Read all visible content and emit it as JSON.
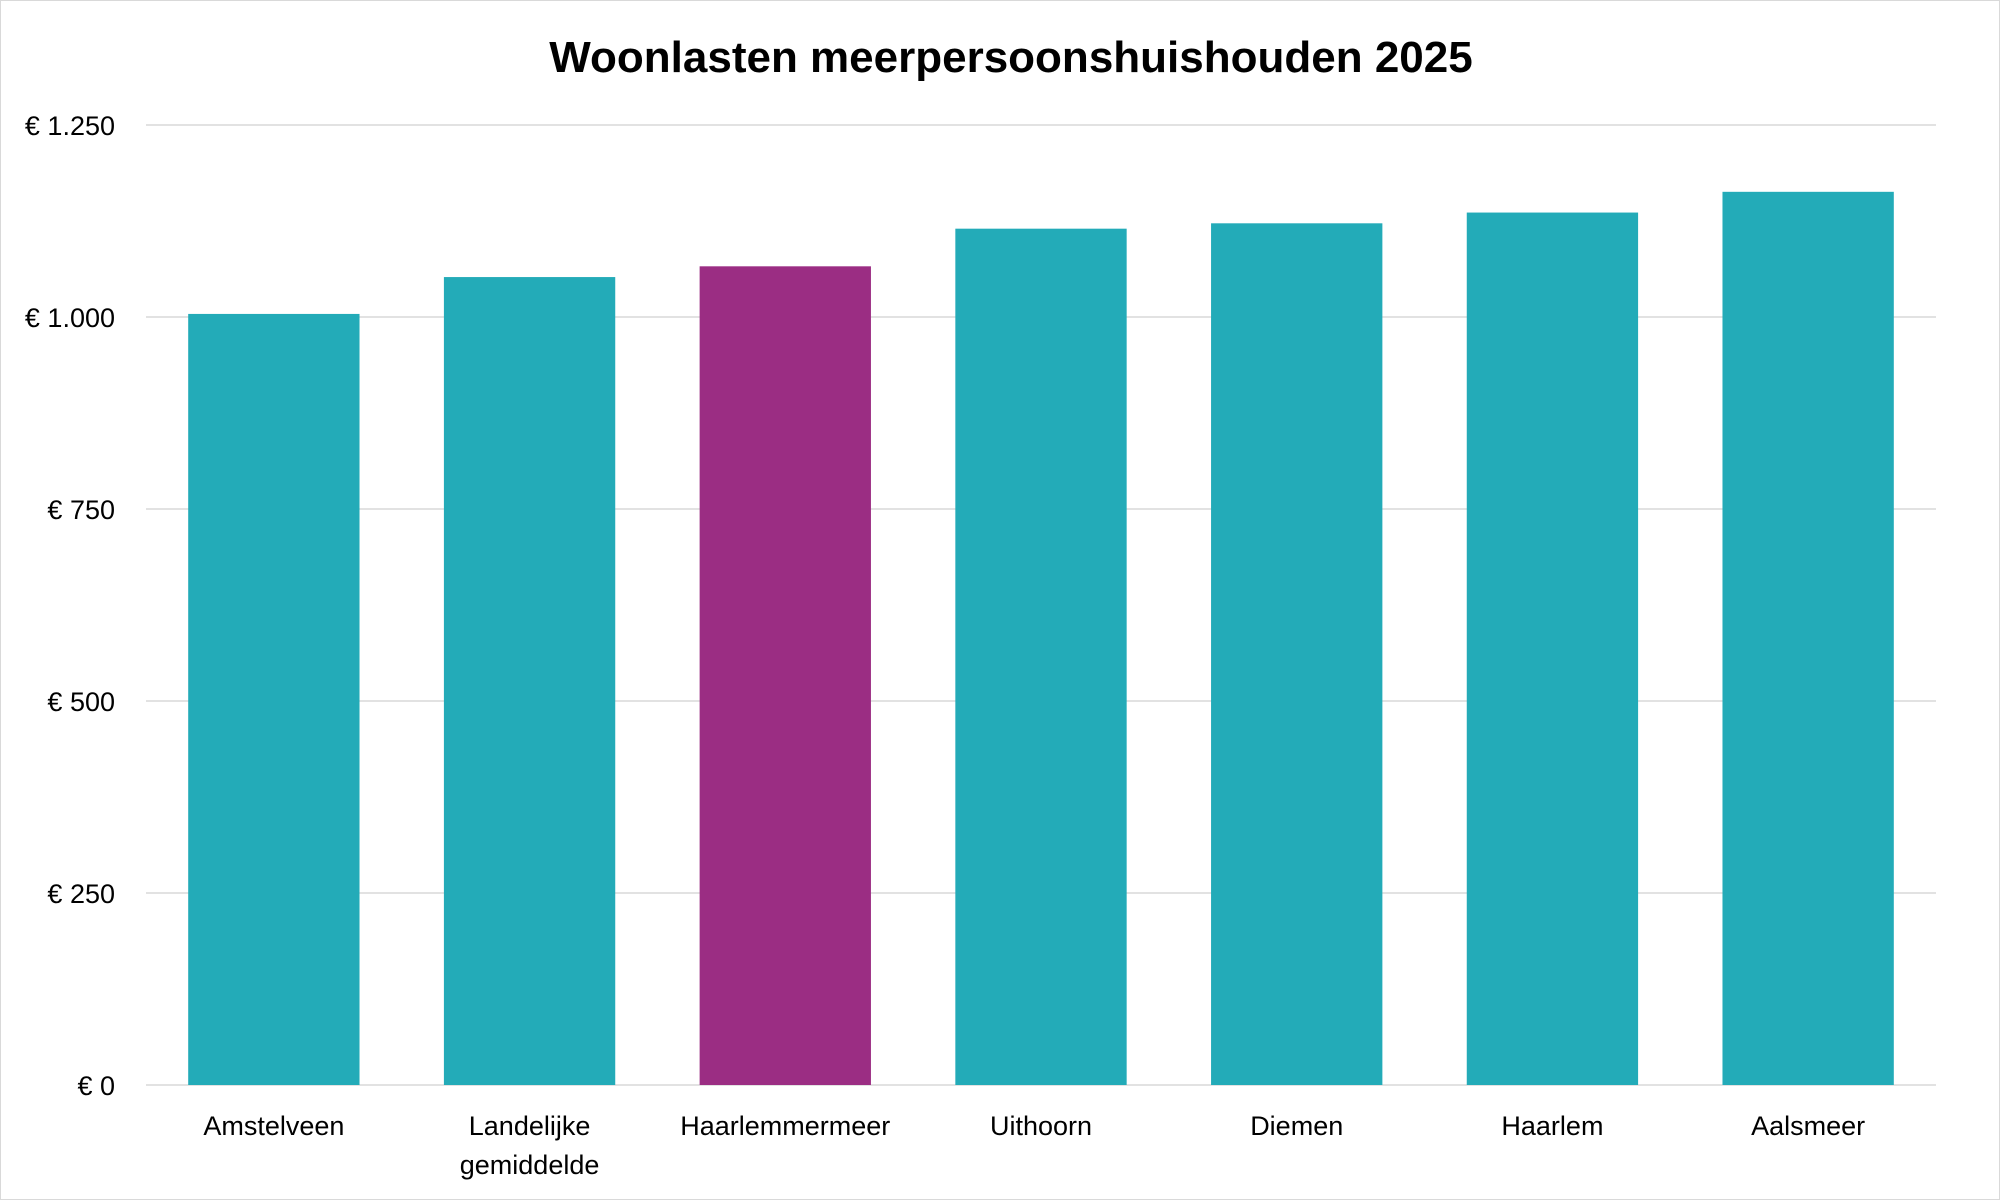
{
  "chart_data": {
    "type": "bar",
    "title": "Woonlasten meerpersoonshuishouden 2025",
    "xlabel": "",
    "ylabel": "",
    "categories": [
      [
        "Amstelveen"
      ],
      [
        "Landelijke",
        "gemiddelde"
      ],
      [
        "Haarlemmermeer"
      ],
      [
        "Uithoorn"
      ],
      [
        "Diemen"
      ],
      [
        "Haarlem"
      ],
      [
        "Aalsmeer"
      ]
    ],
    "values": [
      1004,
      1052,
      1066,
      1115,
      1122,
      1136,
      1163
    ],
    "ylim": [
      0,
      1250
    ],
    "yticks": [
      0,
      250,
      500,
      750,
      1000,
      1250
    ],
    "ytick_labels": [
      "€ 0",
      "€ 250",
      "€ 500",
      "€ 750",
      "€ 1.000",
      "€ 1.250"
    ],
    "grid": true,
    "legend": "none",
    "colors": {
      "default": "#23abb8",
      "highlight": "#9b2d83",
      "grid": "#d9d9d9"
    },
    "highlight_index": 2
  }
}
